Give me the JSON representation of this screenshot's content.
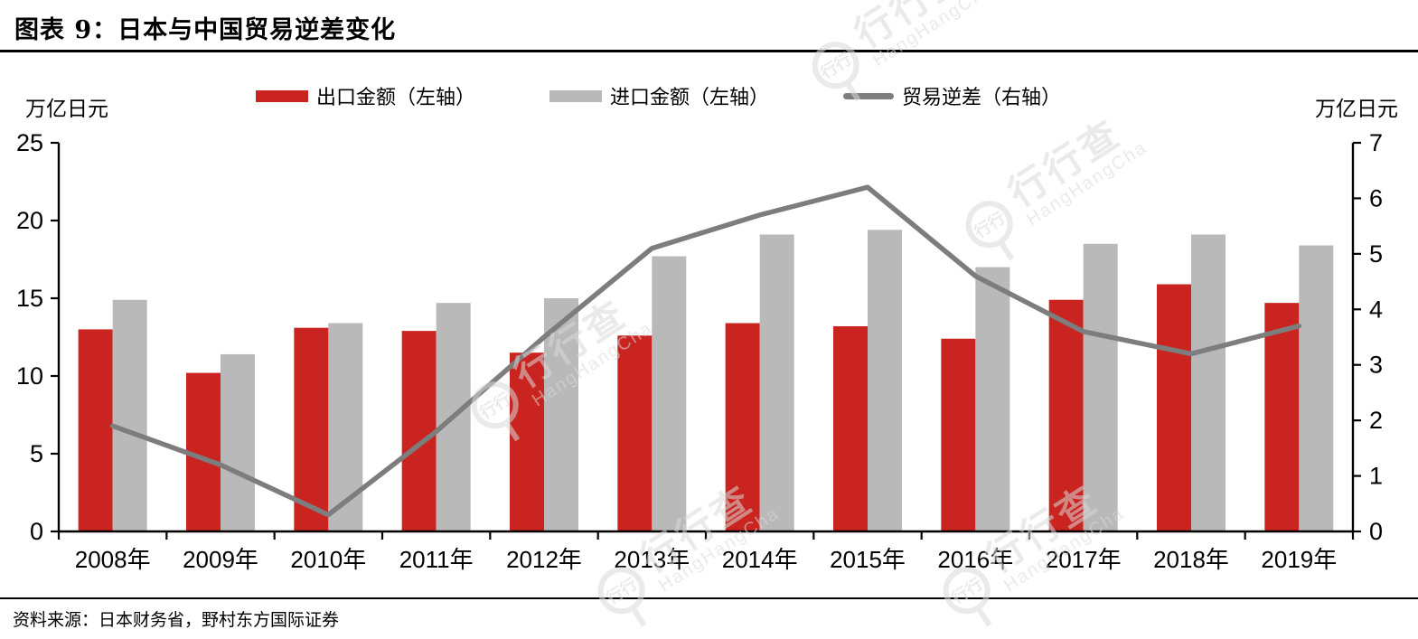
{
  "title": "图表 9：日本与中国贸易逆差变化",
  "units": {
    "left": "万亿日元",
    "right": "万亿日元"
  },
  "legend": {
    "export_label": "出口金额（左轴）",
    "import_label": "进口金额（左轴）",
    "deficit_label": "贸易逆差（右轴）"
  },
  "source": "资料来源：日本财务省，野村东方国际证券",
  "watermark": {
    "ring": "行行",
    "cn": "行行查",
    "en": "HangHangCha"
  },
  "colors": {
    "export_bar": "#C9241F",
    "import_bar": "#B9B9B9",
    "deficit_line": "#7D7D7D",
    "axis": "#000000"
  },
  "chart_data": {
    "type": "bar",
    "title": "日本与中国贸易逆差变化",
    "categories": [
      "2008年",
      "2009年",
      "2010年",
      "2011年",
      "2012年",
      "2013年",
      "2014年",
      "2015年",
      "2016年",
      "2017年",
      "2018年",
      "2019年"
    ],
    "series": [
      {
        "name": "出口金额（左轴）",
        "type": "bar",
        "axis": "left",
        "color": "#C9241F",
        "values": [
          13.0,
          10.2,
          13.1,
          12.9,
          11.5,
          12.6,
          13.4,
          13.2,
          12.4,
          14.9,
          15.9,
          14.7
        ]
      },
      {
        "name": "进口金额（左轴）",
        "type": "bar",
        "axis": "left",
        "color": "#B9B9B9",
        "values": [
          14.9,
          11.4,
          13.4,
          14.7,
          15.0,
          17.7,
          19.1,
          19.4,
          17.0,
          18.5,
          19.1,
          18.4
        ]
      },
      {
        "name": "贸易逆差（右轴）",
        "type": "line",
        "axis": "right",
        "color": "#7D7D7D",
        "values": [
          1.9,
          1.2,
          0.3,
          1.8,
          3.5,
          5.1,
          5.7,
          6.2,
          4.6,
          3.6,
          3.2,
          3.7
        ]
      }
    ],
    "left_axis": {
      "label": "万亿日元",
      "ticks": [
        0,
        5,
        10,
        15,
        20,
        25
      ],
      "range": [
        0,
        25
      ]
    },
    "right_axis": {
      "label": "万亿日元",
      "ticks": [
        0,
        1,
        2,
        3,
        4,
        5,
        6,
        7
      ],
      "range": [
        0,
        7
      ]
    },
    "grid": false,
    "legend_position": "top"
  }
}
